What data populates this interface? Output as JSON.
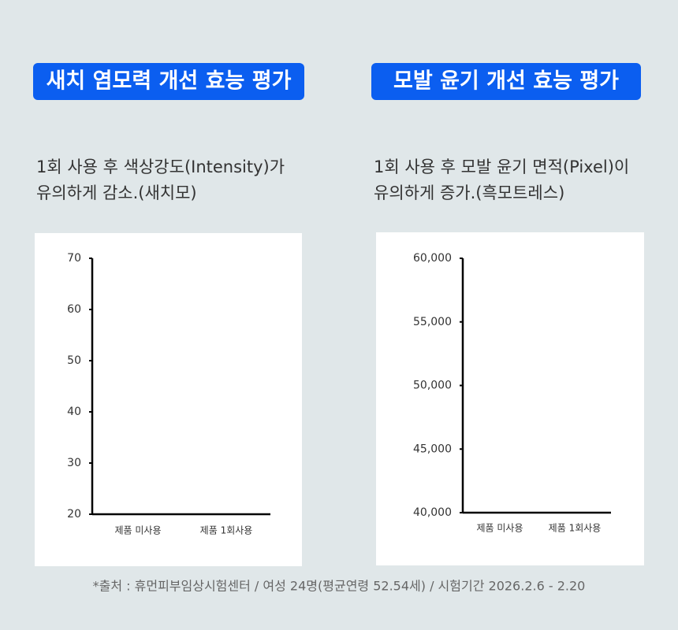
{
  "chart_data": [
    {
      "type": "bar",
      "title": "새치 염모력 개선 효능 평가",
      "subtitle": [
        "1회 사용 후 색상강도(Intensity)가",
        "유의하게 감소.(새치모)"
      ],
      "categories": [
        "제품 미사용",
        "제품 1회사용"
      ],
      "ylim": [
        20,
        70
      ],
      "yticks": [
        20,
        30,
        40,
        50,
        60,
        70
      ]
    },
    {
      "type": "bar",
      "title": "모발 윤기 개선 효능 평가",
      "subtitle": [
        "1회 사용 후 모발 윤기 면적(Pixel)이",
        "유의하게 증가.(흑모트레스)"
      ],
      "categories": [
        "제품 미사용",
        "제품 1회사용"
      ],
      "ylim": [
        40000,
        60000
      ],
      "yticks": [
        {
          "value": 40000,
          "label": "40,000"
        },
        {
          "value": 45000,
          "label": "45,000"
        },
        {
          "value": 50000,
          "label": "50,000"
        },
        {
          "value": 55000,
          "label": "55,000"
        },
        {
          "value": 60000,
          "label": "60,000"
        }
      ]
    }
  ],
  "footnote": "*출처 : 휴먼피부임상시험센터 / 여성 24명(평균연령 52.54세) / 시험기간 2026.2.6 - 2.20"
}
